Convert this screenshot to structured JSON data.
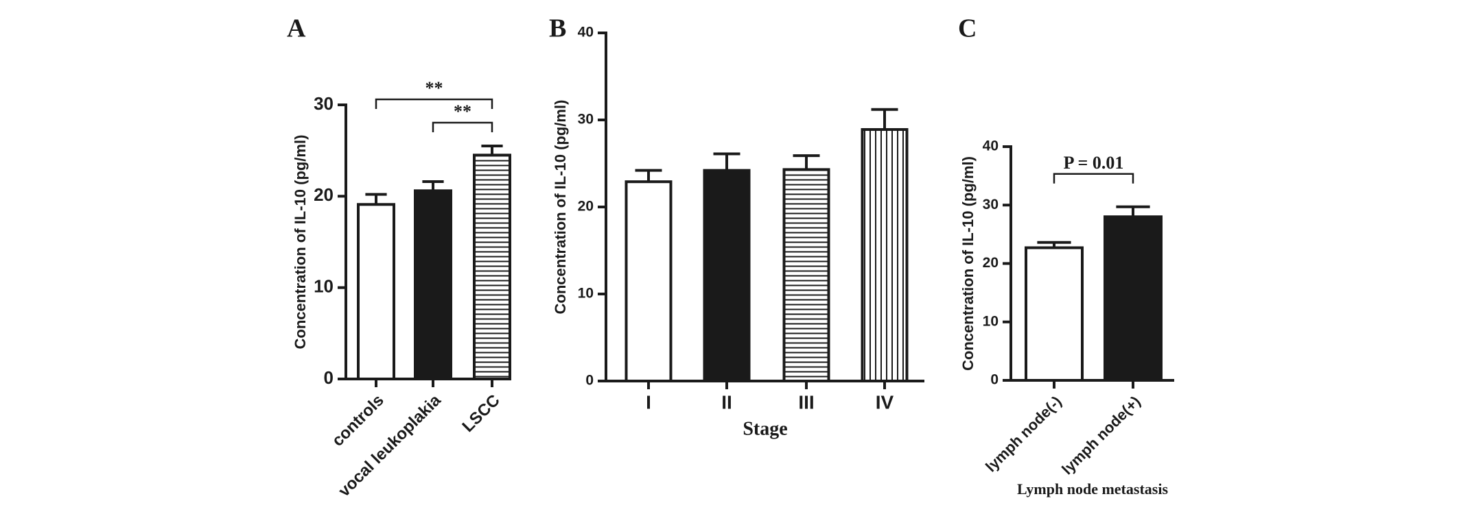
{
  "chart_data": [
    {
      "type": "bar",
      "panel_label": "A",
      "ylabel": "Concentration of IL-10 (pg/ml)",
      "categories": [
        "controls",
        "vocal leukoplakia",
        "LSCC"
      ],
      "values": [
        19.1,
        20.6,
        24.5
      ],
      "errors": [
        1.1,
        1.0,
        1.0
      ],
      "patterns": [
        "open",
        "solid",
        "horizontal"
      ],
      "ylim": [
        0,
        30
      ],
      "yticks": [
        0,
        10,
        20,
        30
      ],
      "annotations": [
        {
          "text": "**",
          "between": [
            "controls",
            "LSCC"
          ]
        },
        {
          "text": "**",
          "between": [
            "vocal leukoplakia",
            "LSCC"
          ]
        }
      ]
    },
    {
      "type": "bar",
      "panel_label": "B",
      "ylabel": "Concentration of IL-10 (pg/ml)",
      "xlabel": "Stage",
      "categories": [
        "I",
        "II",
        "III",
        "IV"
      ],
      "values": [
        22.9,
        24.2,
        24.3,
        28.9
      ],
      "errors": [
        1.3,
        1.9,
        1.6,
        2.3
      ],
      "patterns": [
        "open",
        "solid",
        "horizontal",
        "vertical"
      ],
      "ylim": [
        0,
        40
      ],
      "yticks": [
        0,
        10,
        20,
        30,
        40
      ]
    },
    {
      "type": "bar",
      "panel_label": "C",
      "ylabel": "Concentration of IL-10 (pg/ml)",
      "xlabel": "Lymph node metastasis",
      "categories": [
        "lymph node(-)",
        "lymph node(+)"
      ],
      "values": [
        22.7,
        28.0
      ],
      "errors": [
        0.9,
        1.7
      ],
      "patterns": [
        "open",
        "solid"
      ],
      "ylim": [
        0,
        40
      ],
      "yticks": [
        0,
        10,
        20,
        30,
        40
      ],
      "annotations": [
        {
          "text": "P = 0.01",
          "between": [
            "lymph node(-)",
            "lymph node(+)"
          ]
        }
      ]
    }
  ]
}
